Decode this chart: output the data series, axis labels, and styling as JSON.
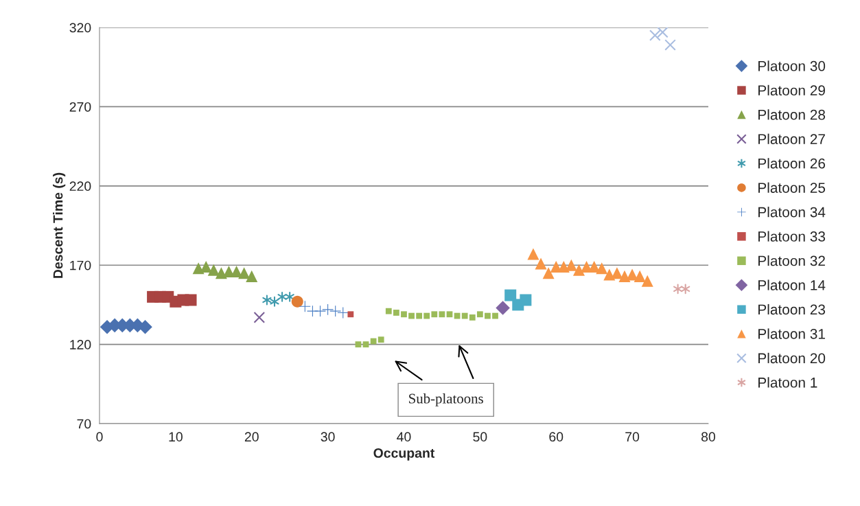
{
  "chart_data": {
    "type": "scatter",
    "xlabel": "Occupant",
    "ylabel": "Descent Time (s)",
    "xlim": [
      0,
      80
    ],
    "xticks": [
      0,
      10,
      20,
      30,
      40,
      50,
      60,
      70,
      80
    ],
    "ylim": [
      70,
      320
    ],
    "yticks": [
      70,
      120,
      170,
      220,
      270,
      320
    ],
    "grid": "y",
    "legend": "right",
    "annotations": [
      "Sub-platoons"
    ],
    "series": [
      {
        "name": "Platoon 30",
        "color": "#4a71b0",
        "marker": "diamond",
        "x": [
          1,
          2,
          3,
          4,
          5,
          6
        ],
        "values": [
          131,
          132,
          132,
          132,
          132,
          131
        ]
      },
      {
        "name": "Platoon 29",
        "color": "#a94442",
        "marker": "square",
        "x": [
          7,
          8,
          9,
          10,
          11,
          12
        ],
        "values": [
          150,
          150,
          150,
          147,
          148,
          148
        ]
      },
      {
        "name": "Platoon 28",
        "color": "#86a34a",
        "marker": "triangle",
        "x": [
          13,
          14,
          15,
          16,
          17,
          18,
          19,
          20
        ],
        "values": [
          168,
          169,
          167,
          165,
          166,
          166,
          165,
          163
        ]
      },
      {
        "name": "Platoon 27",
        "color": "#7a5f96",
        "marker": "cross",
        "x": [
          21
        ],
        "values": [
          137
        ]
      },
      {
        "name": "Platoon 26",
        "color": "#3f9aad",
        "marker": "cross",
        "x": [
          22,
          23,
          24,
          25
        ],
        "values": [
          148,
          147,
          150,
          150
        ]
      },
      {
        "name": "Platoon 25",
        "color": "#e07c34",
        "marker": "circle",
        "x": [
          26
        ],
        "values": [
          147
        ]
      },
      {
        "name": "Platoon 34",
        "color": "#4a7ec4",
        "x": [
          27,
          28,
          29,
          30,
          31,
          32
        ],
        "values": [
          144,
          141,
          141,
          142,
          141,
          140
        ]
      },
      {
        "name": "Platoon 33",
        "color": "#c0504d",
        "marker": "square",
        "x": [
          33
        ],
        "values": [
          139
        ]
      },
      {
        "name": "Platoon 32",
        "color": "#9bbb59",
        "marker": "square",
        "x": [
          34,
          35,
          36,
          37,
          38,
          39,
          40,
          41,
          42,
          43,
          44,
          45,
          46,
          47,
          48,
          49,
          50,
          51,
          52
        ],
        "values": [
          120,
          120,
          122,
          123,
          141,
          140,
          139,
          138,
          138,
          138,
          139,
          139,
          139,
          138,
          138,
          137,
          139,
          138,
          138
        ]
      },
      {
        "name": "Platoon 14",
        "color": "#8064a2",
        "marker": "diamond",
        "x": [
          53
        ],
        "values": [
          143
        ]
      },
      {
        "name": "Platoon 23",
        "color": "#4bacc6",
        "marker": "square",
        "x": [
          54,
          55,
          56
        ],
        "values": [
          151,
          145,
          148
        ]
      },
      {
        "name": "Platoon 31",
        "color": "#f79646",
        "marker": "triangle",
        "x": [
          57,
          58,
          59,
          60,
          61,
          62,
          63,
          64,
          65,
          66,
          67,
          68,
          69,
          70,
          71,
          72
        ],
        "values": [
          177,
          171,
          165,
          169,
          169,
          170,
          167,
          169,
          169,
          168,
          164,
          165,
          163,
          164,
          163,
          160
        ]
      },
      {
        "name": "Platoon 20",
        "color": "#a9bde0",
        "marker": "cross",
        "x": [
          73,
          74,
          75
        ],
        "values": [
          315,
          317,
          309
        ]
      },
      {
        "name": "Platoon 1",
        "color": "#d9a5a3",
        "marker": "cross",
        "x": [
          76,
          77
        ],
        "values": [
          155,
          155
        ]
      }
    ]
  }
}
